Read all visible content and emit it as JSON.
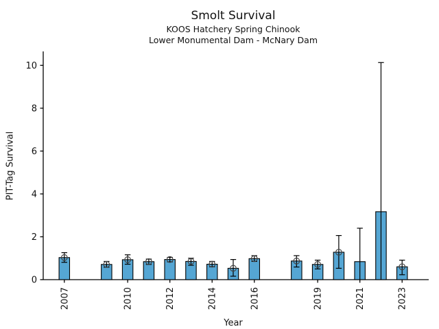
{
  "header": {
    "title": "Smolt Survival",
    "subtitle1": "KOOS Hatchery Spring Chinook",
    "subtitle2": "Lower Monumental Dam - McNary Dam"
  },
  "chart_data": {
    "type": "bar",
    "title": "Smolt Survival",
    "subtitle": [
      "KOOS Hatchery Spring Chinook",
      "Lower Monumental Dam - McNary Dam"
    ],
    "xlabel": "Year",
    "ylabel": "PIT-Tag Survival",
    "xlim": [
      2006,
      2024
    ],
    "ylim": [
      0,
      10.65
    ],
    "xticks": [
      2007,
      2010,
      2012,
      2014,
      2016,
      2019,
      2021,
      2023
    ],
    "yticks": [
      0,
      2,
      4,
      6,
      8,
      10
    ],
    "grid": false,
    "legend": "none",
    "bar_width_years": 0.5,
    "colors": {
      "bar_fill": "#55A6D4",
      "bar_edge": "#000000",
      "error_bar": "#000000",
      "marker_edge": "#444444",
      "axis": "#000000"
    },
    "points": [
      {
        "year": 2007,
        "value": 1.03,
        "ci_low": 0.81,
        "ci_high": 1.26,
        "marker": true,
        "cap_low": true
      },
      {
        "year": 2009,
        "value": 0.71,
        "ci_low": 0.58,
        "ci_high": 0.85,
        "marker": true,
        "cap_low": true
      },
      {
        "year": 2010,
        "value": 0.93,
        "ci_low": 0.72,
        "ci_high": 1.16,
        "marker": true,
        "cap_low": true
      },
      {
        "year": 2011,
        "value": 0.84,
        "ci_low": 0.71,
        "ci_high": 0.96,
        "marker": true,
        "cap_low": true
      },
      {
        "year": 2012,
        "value": 0.94,
        "ci_low": 0.83,
        "ci_high": 1.04,
        "marker": true,
        "cap_low": true
      },
      {
        "year": 2013,
        "value": 0.85,
        "ci_low": 0.67,
        "ci_high": 1.0,
        "marker": true,
        "cap_low": true
      },
      {
        "year": 2014,
        "value": 0.72,
        "ci_low": 0.6,
        "ci_high": 0.85,
        "marker": true,
        "cap_low": true
      },
      {
        "year": 2015,
        "value": 0.53,
        "ci_low": 0.16,
        "ci_high": 0.94,
        "marker": true,
        "cap_low": true
      },
      {
        "year": 2016,
        "value": 0.98,
        "ci_low": 0.85,
        "ci_high": 1.12,
        "marker": true,
        "cap_low": true
      },
      {
        "year": 2018,
        "value": 0.87,
        "ci_low": 0.59,
        "ci_high": 1.12,
        "marker": true,
        "cap_low": true
      },
      {
        "year": 2019,
        "value": 0.71,
        "ci_low": 0.5,
        "ci_high": 0.91,
        "marker": true,
        "cap_low": true
      },
      {
        "year": 2020,
        "value": 1.28,
        "ci_low": 0.53,
        "ci_high": 2.06,
        "marker": true,
        "cap_low": true
      },
      {
        "year": 2021,
        "value": 0.84,
        "ci_low": 0.0,
        "ci_high": 2.4,
        "marker": false,
        "cap_low": false
      },
      {
        "year": 2022,
        "value": 3.17,
        "ci_low": 0.0,
        "ci_high": 10.13,
        "marker": false,
        "cap_low": false
      },
      {
        "year": 2023,
        "value": 0.6,
        "ci_low": 0.23,
        "ci_high": 0.91,
        "marker": true,
        "cap_low": true
      }
    ]
  }
}
